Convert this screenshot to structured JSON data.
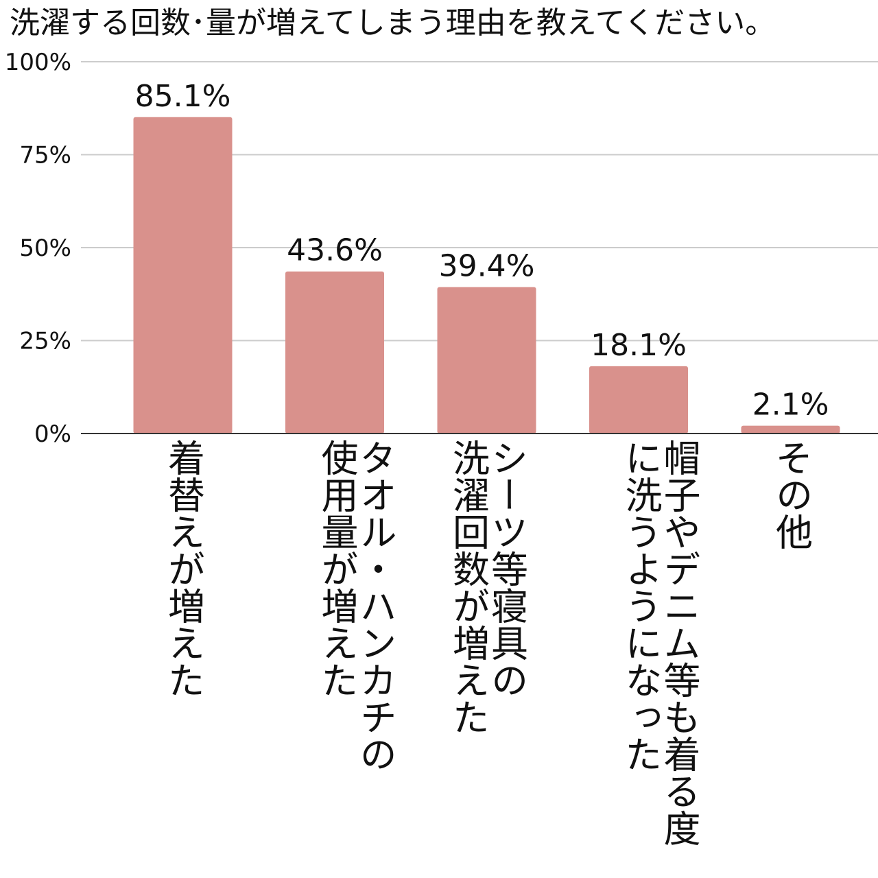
{
  "chart_data": {
    "type": "bar",
    "title": "洗濯する回数･量が増えてしまう理由を教えてください。",
    "xlabel": "",
    "ylabel": "",
    "ylim": [
      0,
      100
    ],
    "yticks": [
      "0%",
      "25%",
      "50%",
      "75%",
      "100%"
    ],
    "grid": true,
    "categories": [
      "着替えが増えた",
      "タオル・ハンカチの\n使用量が増えた",
      "シーツ等寝具の\n洗濯回数が増えた",
      "帽子やデニム等も着る度\nに洗うようになった",
      "その他"
    ],
    "values": [
      85.1,
      43.6,
      39.4,
      18.1,
      2.1
    ],
    "value_labels": [
      "85.1%",
      "43.6%",
      "39.4%",
      "18.1%",
      "2.1%"
    ],
    "bar_color": "#d9918c",
    "grid_color": "#cccccc",
    "axis_color": "#333333"
  }
}
